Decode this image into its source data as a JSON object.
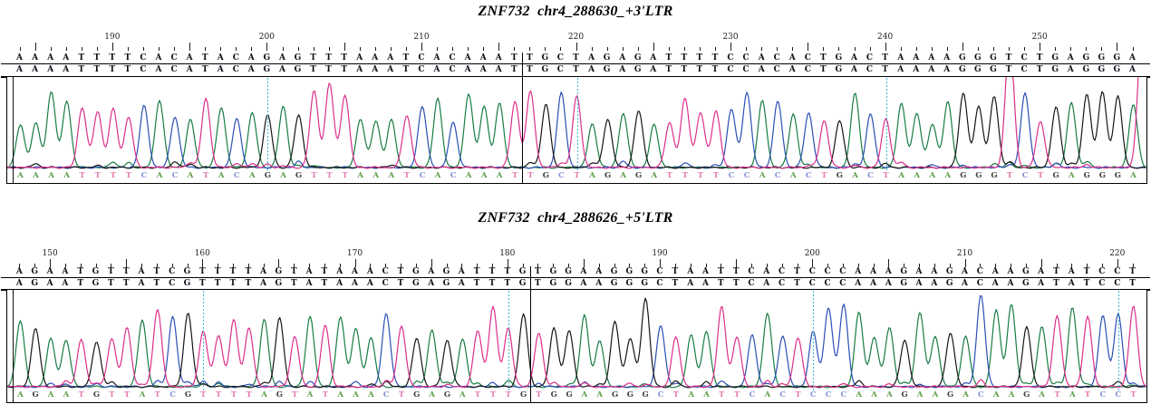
{
  "figure": {
    "panels": [
      {
        "title": "ZNF732  chr4_288630_+3'LTR",
        "sequence": "AAAATTTTCACATACAGAGTTTAAATCACAAATTGCTAGAGATTTTCCACACTGACTAAAAGGGTCTGAGGGA",
        "start_position": 184,
        "end_position": 256,
        "divider_after": 33,
        "ruler_labels": [
          190,
          200,
          210,
          220,
          230,
          240,
          250
        ],
        "guide_positions": [
          200,
          220,
          240
        ],
        "tall_peaks": {
          "20": 1.0,
          "64": 1.55
        },
        "right_edge_tall_T_peak": true,
        "seed": 7
      },
      {
        "title": "ZNF732  chr4_288626_+5'LTR",
        "sequence": "AGAATGTTATCGTTTTAGTATAAACTGAGATTTGTGGAAGGGCTAATTCACTCCCAAAGAAGACAAGATATCCT",
        "start_position": 148,
        "end_position": 221,
        "divider_after": 34,
        "ruler_labels": [
          150,
          160,
          170,
          180,
          190,
          200,
          210,
          220
        ],
        "guide_positions": [
          160,
          180,
          200,
          220
        ],
        "tall_peaks": {
          "41": 0.98,
          "63": 1.02
        },
        "right_edge_tall_T_peak": false,
        "seed": 13
      }
    ],
    "trace_colors": {
      "A": "#187d44",
      "C": "#2b4fb4",
      "G": "#161616",
      "T": "#dc2f8c"
    },
    "call_letter_colors": {
      "A": "#5a9b45",
      "C": "#8390d8",
      "G": "#3f3f3f",
      "T": "#e87cb0"
    },
    "guide_color": "#3ab5cf"
  },
  "chart_data": [
    {
      "type": "line",
      "subtype": "sanger_sequencing_chromatogram",
      "title": "ZNF732 chr4_288630_+3'LTR",
      "x_axis": "base position",
      "x_range": [
        184,
        256
      ],
      "x_tick_labels": [
        190,
        200,
        210,
        220,
        230,
        240,
        250
      ],
      "reference_sequence": "AAAATTTTCACATACAGAGTTTAAATCACAAATTGCTAGAGATTTTCCACACTGACTAAAAGGGTCTGAGGGA",
      "sample_sequence": "AAAATTTTCACATACAGAGTTTAAATCACAAATTGCTAGAGATTTTCCACACTGACTAAAAGGGTCTGAGGGA",
      "base_call_row": "AAAATTTTCACATACAGAGTTTAAATCACAAATTGCTAGAGATTTTCCACACTGACTAAAAGGGTCTGAGGGA",
      "segment_boundary_between_positions": [
        216,
        217
      ],
      "vertical_guide_positions": [
        200,
        220,
        240
      ],
      "series": [
        {
          "name": "A trace",
          "color": "green"
        },
        {
          "name": "C trace",
          "color": "blue"
        },
        {
          "name": "G trace",
          "color": "black"
        },
        {
          "name": "T trace",
          "color": "magenta"
        }
      ],
      "legend": "none",
      "grid": "off"
    },
    {
      "type": "line",
      "subtype": "sanger_sequencing_chromatogram",
      "title": "ZNF732 chr4_288626_+5'LTR",
      "x_axis": "base position",
      "x_range": [
        148,
        221
      ],
      "x_tick_labels": [
        150,
        160,
        170,
        180,
        190,
        200,
        210,
        220
      ],
      "reference_sequence": "AGAATGTTATCGTTTTAGTATAAACTGAGATTTGTGGAAGGGCTAATTCACTCCCAAAGAAGACAAGATATCCT",
      "sample_sequence": "AGAATGTTATCGTTTTAGTATAAACTGAGATTTGTGGAAGGGCTAATTCACTCCCAAAGAAGACAAGATATCCT",
      "base_call_row": "AGAATGTTATCGTTTTAGTATAAACTGAGATTTGTGGAAGGGCTAATTCACTCCCAAAGAAGACAAGATATCCT",
      "segment_boundary_between_positions": [
        181,
        182
      ],
      "vertical_guide_positions": [
        160,
        180,
        200,
        220
      ],
      "series": [
        {
          "name": "A trace",
          "color": "green"
        },
        {
          "name": "C trace",
          "color": "blue"
        },
        {
          "name": "G trace",
          "color": "black"
        },
        {
          "name": "T trace",
          "color": "magenta"
        }
      ],
      "legend": "none",
      "grid": "off"
    }
  ]
}
